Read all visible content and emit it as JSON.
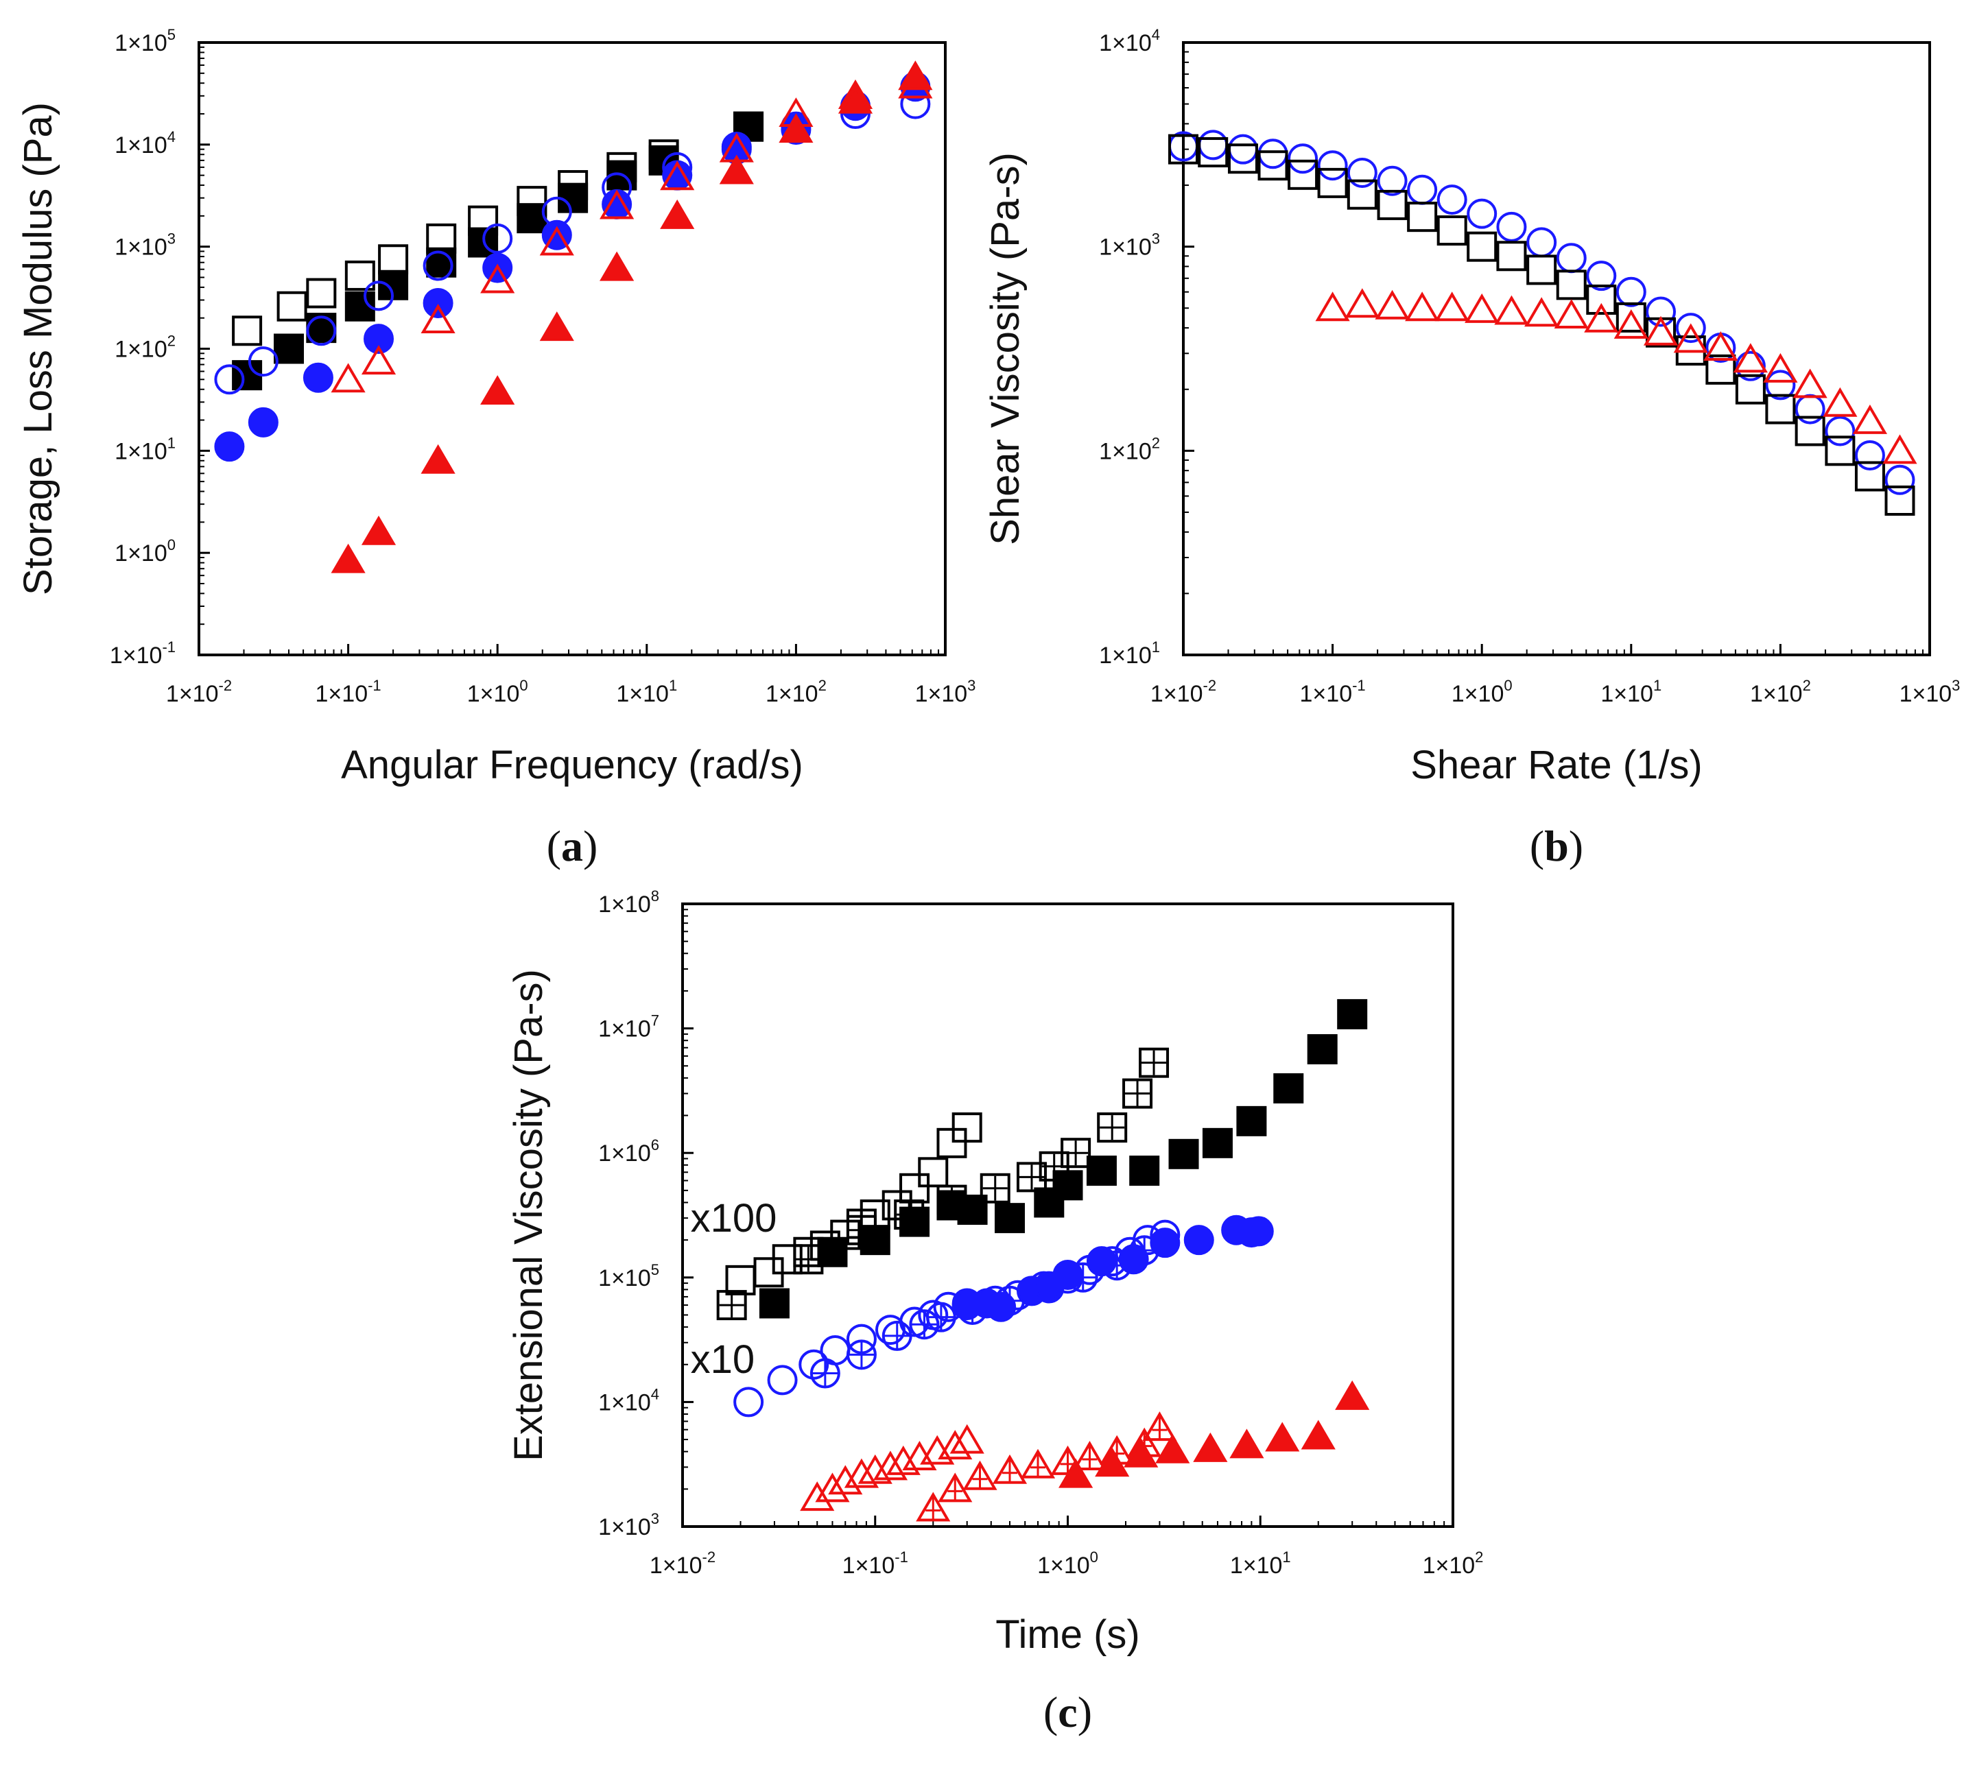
{
  "colors": {
    "black": "#000000",
    "blue": "#1a1aff",
    "red": "#ee1111"
  },
  "chart_data": [
    {
      "type": "scatter",
      "panel_label": "a",
      "xlabel": "Angular Frequency (rad/s)",
      "ylabel": "Storage, Loss Modulus (Pa)",
      "xscale": "log",
      "yscale": "log",
      "xlim": [
        0.01,
        1000
      ],
      "ylim": [
        0.1,
        100000
      ],
      "xticks": [
        {
          "b": "1×10",
          "e": "-2"
        },
        {
          "b": "1×10",
          "e": "-1"
        },
        {
          "b": "1×10",
          "e": "0"
        },
        {
          "b": "1×10",
          "e": "1"
        },
        {
          "b": "1×10",
          "e": "2"
        },
        {
          "b": "1×10",
          "e": "3"
        }
      ],
      "yticks": [
        {
          "b": "1×10",
          "e": "-1"
        },
        {
          "b": "1×10",
          "e": "0"
        },
        {
          "b": "1×10",
          "e": "1"
        },
        {
          "b": "1×10",
          "e": "2"
        },
        {
          "b": "1×10",
          "e": "3"
        },
        {
          "b": "1×10",
          "e": "4"
        },
        {
          "b": "1×10",
          "e": "5"
        }
      ],
      "series": [
        {
          "name": "black open squares",
          "color": "black",
          "marker": "square",
          "filled": false,
          "x": [
            0.021,
            0.042,
            0.066,
            0.12,
            0.2,
            0.42,
            0.8,
            1.7,
            3.2,
            6.8,
            13,
            48
          ],
          "y": [
            150,
            260,
            350,
            520,
            750,
            1200,
            1800,
            2800,
            4000,
            6000,
            8000,
            15000
          ]
        },
        {
          "name": "black filled squares",
          "color": "black",
          "marker": "square",
          "filled": true,
          "x": [
            0.021,
            0.04,
            0.066,
            0.12,
            0.2,
            0.42,
            0.8,
            1.7,
            3.2,
            6.8,
            13,
            48
          ],
          "y": [
            55,
            100,
            160,
            260,
            420,
            700,
            1100,
            1900,
            3000,
            5000,
            7000,
            15000
          ]
        },
        {
          "name": "blue open circles",
          "color": "blue",
          "marker": "circle",
          "filled": false,
          "x": [
            0.016,
            0.027,
            0.066,
            0.16,
            0.4,
            1.0,
            2.5,
            6.3,
            16,
            40,
            100,
            250,
            630
          ],
          "y": [
            50,
            75,
            150,
            330,
            650,
            1200,
            2200,
            3800,
            6000,
            9500,
            14000,
            20000,
            25000
          ]
        },
        {
          "name": "blue filled circles",
          "color": "blue",
          "marker": "circle",
          "filled": true,
          "x": [
            0.016,
            0.027,
            0.063,
            0.16,
            0.4,
            1.0,
            2.5,
            6.3,
            16,
            40,
            100,
            250,
            630
          ],
          "y": [
            11,
            19,
            52,
            125,
            280,
            620,
            1300,
            2600,
            5000,
            9000,
            15000,
            24000,
            37000
          ]
        },
        {
          "name": "red open triangles",
          "color": "red",
          "marker": "triangle",
          "filled": false,
          "x": [
            0.1,
            0.16,
            0.4,
            1.0,
            2.5,
            6.3,
            16,
            40,
            100,
            250,
            630
          ],
          "y": [
            50,
            75,
            190,
            470,
            1100,
            2500,
            4800,
            9000,
            20000,
            30000,
            38000
          ]
        },
        {
          "name": "red filled triangles",
          "color": "red",
          "marker": "triangle",
          "filled": true,
          "x": [
            0.1,
            0.16,
            0.4,
            1.0,
            2.5,
            6.3,
            16,
            40,
            100,
            250,
            630
          ],
          "y": [
            0.85,
            1.6,
            8,
            38,
            160,
            620,
            2000,
            5500,
            14000,
            27000,
            46000
          ]
        }
      ]
    },
    {
      "type": "scatter",
      "panel_label": "b",
      "xlabel": "Shear Rate (1/s)",
      "ylabel": "Shear Viscosity (Pa-s)",
      "xscale": "log",
      "yscale": "log",
      "xlim": [
        0.01,
        1000
      ],
      "ylim": [
        10,
        10000
      ],
      "xticks": [
        {
          "b": "1×10",
          "e": "-2"
        },
        {
          "b": "1×10",
          "e": "-1"
        },
        {
          "b": "1×10",
          "e": "0"
        },
        {
          "b": "1×10",
          "e": "1"
        },
        {
          "b": "1×10",
          "e": "2"
        },
        {
          "b": "1×10",
          "e": "3"
        }
      ],
      "yticks": [
        {
          "b": "1×10",
          "e": "1"
        },
        {
          "b": "1×10",
          "e": "2"
        },
        {
          "b": "1×10",
          "e": "3"
        },
        {
          "b": "1×10",
          "e": "4"
        }
      ],
      "series": [
        {
          "name": "blue open circles",
          "color": "blue",
          "marker": "circle",
          "filled": false,
          "x": [
            0.01,
            0.0158,
            0.0251,
            0.0398,
            0.0631,
            0.1,
            0.158,
            0.251,
            0.398,
            0.631,
            1.0,
            1.58,
            2.51,
            3.98,
            6.31,
            10,
            15.8,
            25.1,
            39.8,
            63.1,
            100,
            158,
            251,
            398,
            631
          ],
          "y": [
            3100,
            3150,
            3000,
            2850,
            2700,
            2500,
            2300,
            2100,
            1900,
            1700,
            1450,
            1250,
            1050,
            880,
            720,
            600,
            480,
            400,
            320,
            260,
            210,
            160,
            125,
            95,
            72
          ]
        },
        {
          "name": "black open squares",
          "color": "black",
          "marker": "square",
          "filled": false,
          "x": [
            0.01,
            0.0158,
            0.0251,
            0.0398,
            0.0631,
            0.1,
            0.158,
            0.251,
            0.398,
            0.631,
            1.0,
            1.58,
            2.51,
            3.98,
            6.31,
            10,
            15.8,
            25.1,
            39.8,
            63.1,
            100,
            158,
            251,
            398,
            631
          ],
          "y": [
            3000,
            2900,
            2700,
            2500,
            2250,
            2050,
            1800,
            1600,
            1400,
            1200,
            1000,
            900,
            770,
            650,
            550,
            450,
            380,
            310,
            250,
            200,
            160,
            125,
            100,
            75,
            57
          ]
        },
        {
          "name": "red open triangles",
          "color": "red",
          "marker": "triangle",
          "filled": false,
          "x": [
            0.1,
            0.158,
            0.251,
            0.398,
            0.631,
            1.0,
            1.58,
            2.51,
            3.98,
            6.31,
            10,
            15.8,
            25.1,
            39.8,
            63.1,
            100,
            158,
            251,
            398,
            631
          ],
          "y": [
            500,
            520,
            510,
            500,
            500,
            490,
            480,
            470,
            460,
            440,
            410,
            380,
            350,
            320,
            280,
            250,
            210,
            170,
            140,
            100
          ]
        }
      ]
    },
    {
      "type": "scatter",
      "panel_label": "c",
      "xlabel": "Time (s)",
      "ylabel": "Extensional Viscosity (Pa-s)",
      "xscale": "log",
      "yscale": "log",
      "xlim": [
        0.01,
        100
      ],
      "ylim": [
        1000,
        100000000
      ],
      "xticks": [
        {
          "b": "1×10",
          "e": "-2"
        },
        {
          "b": "1×10",
          "e": "-1"
        },
        {
          "b": "1×10",
          "e": "0"
        },
        {
          "b": "1×10",
          "e": "1"
        },
        {
          "b": "1×10",
          "e": "2"
        }
      ],
      "yticks": [
        {
          "b": "1×10",
          "e": "3"
        },
        {
          "b": "1×10",
          "e": "4"
        },
        {
          "b": "1×10",
          "e": "5"
        },
        {
          "b": "1×10",
          "e": "6"
        },
        {
          "b": "1×10",
          "e": "7"
        },
        {
          "b": "1×10",
          "e": "8"
        }
      ],
      "annotations": [
        {
          "text": "x100",
          "x": 0.011,
          "y": 300000
        },
        {
          "text": "x10",
          "x": 0.011,
          "y": 22000
        }
      ],
      "series": [
        {
          "name": "black open squares",
          "color": "black",
          "marker": "square",
          "filled": false,
          "x": [
            0.02,
            0.028,
            0.035,
            0.045,
            0.055,
            0.07,
            0.085,
            0.1,
            0.13,
            0.16,
            0.2,
            0.25,
            0.3
          ],
          "y": [
            95000,
            110000,
            140000,
            160000,
            180000,
            220000,
            270000,
            320000,
            380000,
            520000,
            700000,
            1200000,
            1600000
          ]
        },
        {
          "name": "black crossed squares",
          "color": "black",
          "marker": "square-cross",
          "filled": false,
          "x": [
            0.018,
            0.045,
            0.085,
            0.15,
            0.25,
            0.42,
            0.65,
            0.85,
            1.1,
            1.7,
            2.3,
            2.8
          ],
          "y": [
            60000,
            140000,
            240000,
            320000,
            420000,
            520000,
            640000,
            780000,
            1000000,
            1600000,
            3000000,
            5300000
          ]
        },
        {
          "name": "black filled squares",
          "color": "black",
          "marker": "square",
          "filled": true,
          "x": [
            0.03,
            0.06,
            0.1,
            0.16,
            0.25,
            0.32,
            0.5,
            0.8,
            1.0,
            1.5,
            2.5,
            4.0,
            6.0,
            9.0,
            14,
            21,
            30
          ],
          "y": [
            62000,
            160000,
            200000,
            280000,
            380000,
            350000,
            300000,
            400000,
            550000,
            720000,
            720000,
            980000,
            1200000,
            1800000,
            3300000,
            6800000,
            13000000
          ]
        },
        {
          "name": "blue open circles",
          "color": "blue",
          "marker": "circle",
          "filled": false,
          "x": [
            0.022,
            0.033,
            0.048,
            0.062,
            0.085,
            0.12,
            0.16,
            0.2,
            0.24,
            0.3,
            0.42,
            0.55,
            0.75,
            1.0,
            1.3,
            1.7,
            2.1,
            2.6,
            3.2
          ],
          "y": [
            10000,
            15000,
            20000,
            26000,
            32000,
            38000,
            44000,
            50000,
            58000,
            62000,
            65000,
            72000,
            85000,
            98000,
            115000,
            135000,
            160000,
            200000,
            220000
          ]
        },
        {
          "name": "blue crossed circles",
          "color": "blue",
          "marker": "circle-cross",
          "filled": false,
          "x": [
            0.055,
            0.085,
            0.13,
            0.18,
            0.22,
            0.32,
            0.5,
            0.8,
            1.2,
            1.8,
            2.5
          ],
          "y": [
            17000,
            24000,
            34000,
            42000,
            48000,
            55000,
            65000,
            82000,
            100000,
            125000,
            165000
          ]
        },
        {
          "name": "blue filled circles",
          "color": "blue",
          "marker": "circle",
          "filled": true,
          "x": [
            0.3,
            0.38,
            0.45,
            0.65,
            0.8,
            1.0,
            1.5,
            2.2,
            3.2,
            4.8,
            7.5,
            9.0,
            9.8
          ],
          "y": [
            60000,
            62000,
            58000,
            78000,
            85000,
            105000,
            135000,
            140000,
            190000,
            200000,
            240000,
            230000,
            235000
          ]
        },
        {
          "name": "red open triangles",
          "color": "red",
          "marker": "triangle",
          "filled": false,
          "x": [
            0.05,
            0.06,
            0.07,
            0.085,
            0.1,
            0.12,
            0.14,
            0.17,
            0.21,
            0.26,
            0.3
          ],
          "y": [
            1700,
            2000,
            2300,
            2600,
            2800,
            3000,
            3300,
            3600,
            4000,
            4400,
            4900
          ]
        },
        {
          "name": "red crossed triangles",
          "color": "red",
          "marker": "triangle-cross",
          "filled": false,
          "x": [
            0.2,
            0.26,
            0.35,
            0.5,
            0.7,
            1.0,
            1.3,
            1.8,
            2.5,
            3.0
          ],
          "y": [
            1400,
            2000,
            2500,
            2800,
            3100,
            3300,
            3600,
            4000,
            4600,
            6200
          ]
        },
        {
          "name": "red filled triangles",
          "color": "red",
          "marker": "triangle",
          "filled": true,
          "x": [
            1.1,
            1.7,
            2.4,
            3.5,
            5.5,
            8.5,
            13,
            20,
            30
          ],
          "y": [
            2600,
            3200,
            3800,
            4100,
            4200,
            4500,
            5100,
            5300,
            11000
          ]
        }
      ]
    }
  ]
}
